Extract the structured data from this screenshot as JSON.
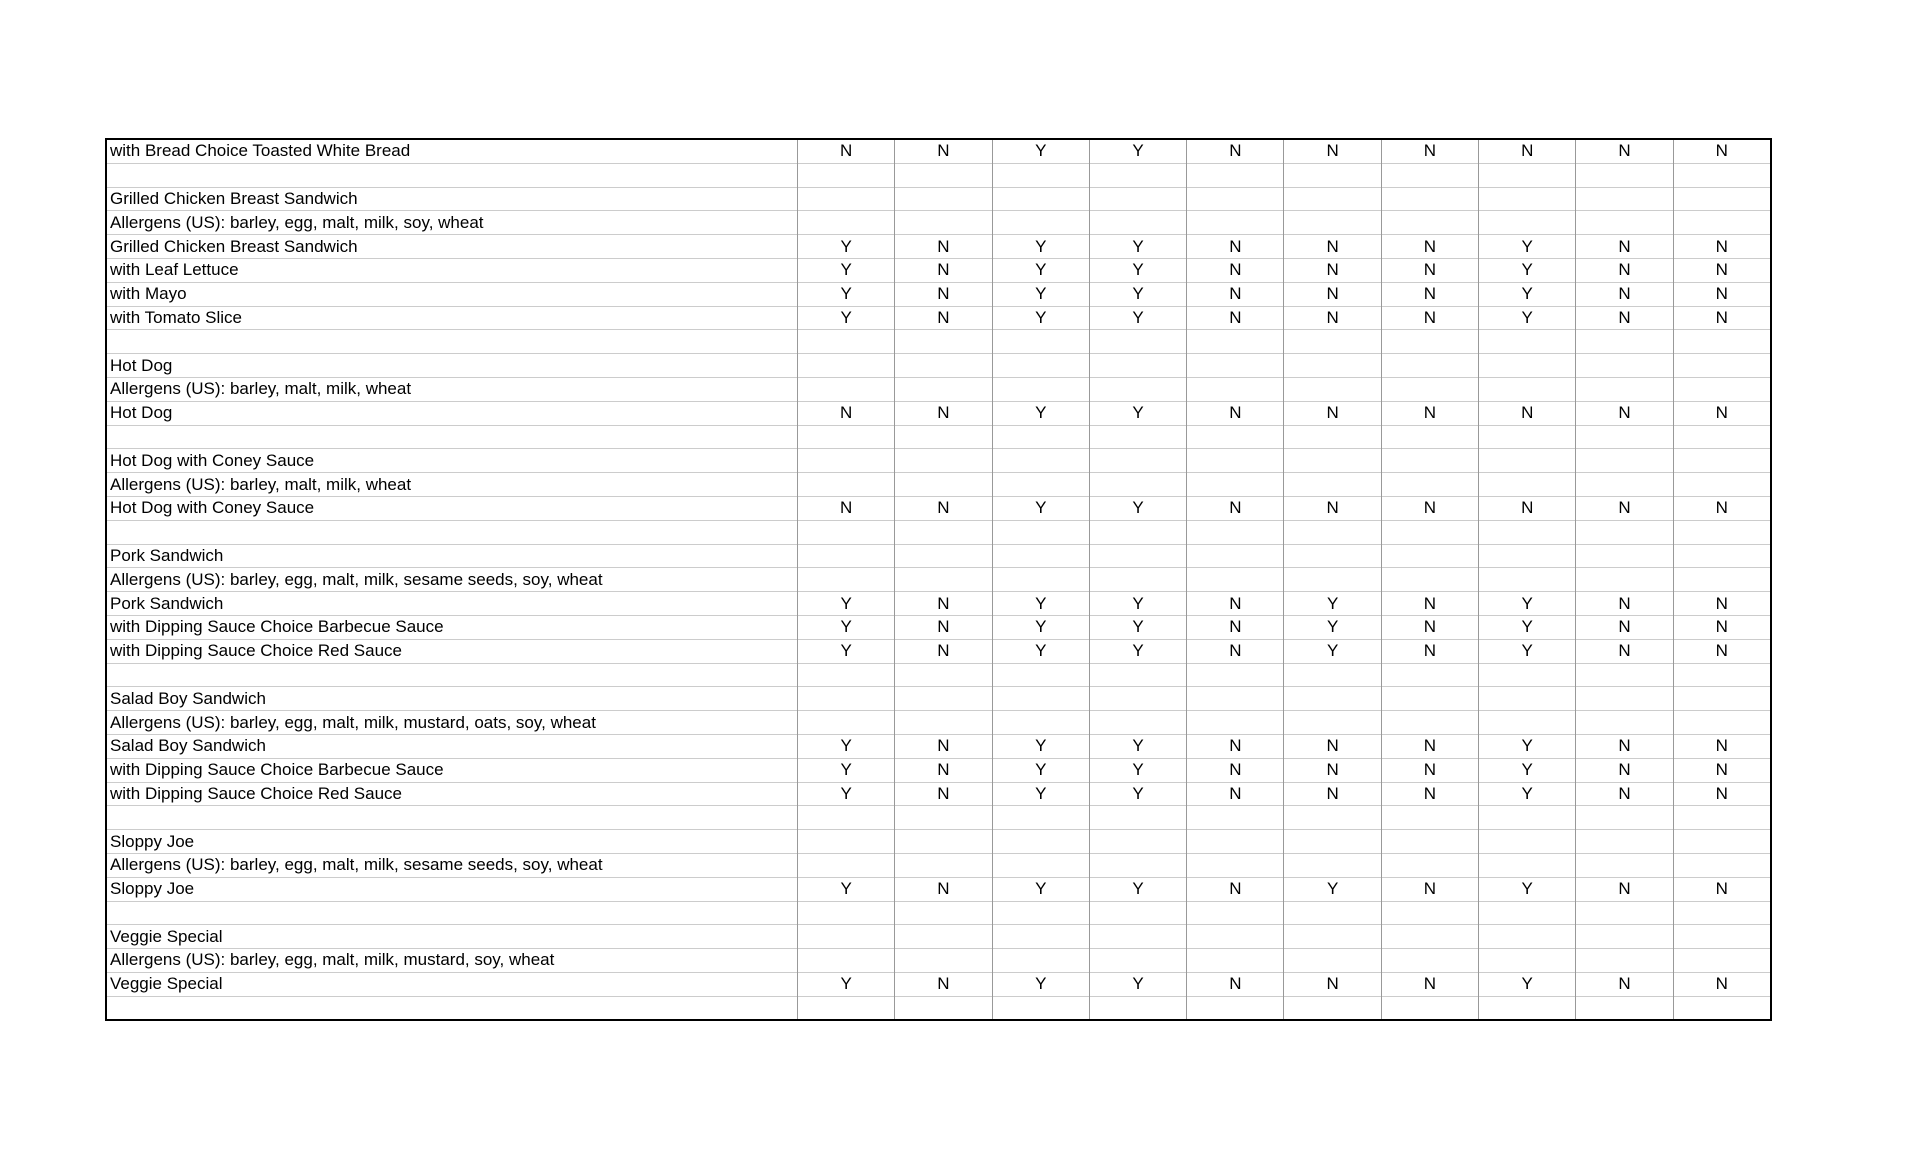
{
  "rows": [
    {
      "label": "with Bread Choice Toasted White Bread",
      "values": [
        "N",
        "N",
        "Y",
        "Y",
        "N",
        "N",
        "N",
        "N",
        "N",
        "N"
      ]
    },
    {
      "label": "",
      "values": []
    },
    {
      "label": "Grilled Chicken Breast Sandwich",
      "values": []
    },
    {
      "label": "Allergens (US): barley, egg, malt, milk, soy, wheat",
      "values": []
    },
    {
      "label": "Grilled Chicken Breast Sandwich",
      "values": [
        "Y",
        "N",
        "Y",
        "Y",
        "N",
        "N",
        "N",
        "Y",
        "N",
        "N"
      ]
    },
    {
      "label": "with Leaf Lettuce",
      "values": [
        "Y",
        "N",
        "Y",
        "Y",
        "N",
        "N",
        "N",
        "Y",
        "N",
        "N"
      ]
    },
    {
      "label": "with Mayo",
      "values": [
        "Y",
        "N",
        "Y",
        "Y",
        "N",
        "N",
        "N",
        "Y",
        "N",
        "N"
      ]
    },
    {
      "label": "with Tomato Slice",
      "values": [
        "Y",
        "N",
        "Y",
        "Y",
        "N",
        "N",
        "N",
        "Y",
        "N",
        "N"
      ]
    },
    {
      "label": "",
      "values": []
    },
    {
      "label": "Hot Dog",
      "values": []
    },
    {
      "label": "Allergens (US): barley, malt, milk, wheat",
      "values": []
    },
    {
      "label": "Hot Dog",
      "values": [
        "N",
        "N",
        "Y",
        "Y",
        "N",
        "N",
        "N",
        "N",
        "N",
        "N"
      ]
    },
    {
      "label": "",
      "values": []
    },
    {
      "label": "Hot Dog with Coney Sauce",
      "values": []
    },
    {
      "label": "Allergens (US): barley, malt, milk, wheat",
      "values": []
    },
    {
      "label": "Hot Dog with Coney Sauce",
      "values": [
        "N",
        "N",
        "Y",
        "Y",
        "N",
        "N",
        "N",
        "N",
        "N",
        "N"
      ]
    },
    {
      "label": "",
      "values": []
    },
    {
      "label": "Pork Sandwich",
      "values": []
    },
    {
      "label": "Allergens (US): barley, egg, malt, milk, sesame seeds, soy, wheat",
      "values": []
    },
    {
      "label": "Pork Sandwich",
      "values": [
        "Y",
        "N",
        "Y",
        "Y",
        "N",
        "Y",
        "N",
        "Y",
        "N",
        "N"
      ]
    },
    {
      "label": "with Dipping Sauce Choice Barbecue Sauce",
      "values": [
        "Y",
        "N",
        "Y",
        "Y",
        "N",
        "Y",
        "N",
        "Y",
        "N",
        "N"
      ]
    },
    {
      "label": "with Dipping Sauce Choice Red Sauce",
      "values": [
        "Y",
        "N",
        "Y",
        "Y",
        "N",
        "Y",
        "N",
        "Y",
        "N",
        "N"
      ]
    },
    {
      "label": "",
      "values": []
    },
    {
      "label": "Salad Boy Sandwich",
      "values": []
    },
    {
      "label": "Allergens (US): barley, egg, malt, milk, mustard, oats, soy, wheat",
      "values": []
    },
    {
      "label": "Salad Boy Sandwich",
      "values": [
        "Y",
        "N",
        "Y",
        "Y",
        "N",
        "N",
        "N",
        "Y",
        "N",
        "N"
      ]
    },
    {
      "label": "with Dipping Sauce Choice Barbecue Sauce",
      "values": [
        "Y",
        "N",
        "Y",
        "Y",
        "N",
        "N",
        "N",
        "Y",
        "N",
        "N"
      ]
    },
    {
      "label": "with Dipping Sauce Choice Red Sauce",
      "values": [
        "Y",
        "N",
        "Y",
        "Y",
        "N",
        "N",
        "N",
        "Y",
        "N",
        "N"
      ]
    },
    {
      "label": "",
      "values": []
    },
    {
      "label": "Sloppy Joe",
      "values": []
    },
    {
      "label": "Allergens (US): barley, egg, malt, milk, sesame seeds, soy, wheat",
      "values": []
    },
    {
      "label": "Sloppy Joe",
      "values": [
        "Y",
        "N",
        "Y",
        "Y",
        "N",
        "Y",
        "N",
        "Y",
        "N",
        "N"
      ]
    },
    {
      "label": "",
      "values": []
    },
    {
      "label": "Veggie Special",
      "values": []
    },
    {
      "label": "Allergens (US): barley, egg, malt, milk, mustard, soy, wheat",
      "values": []
    },
    {
      "label": "Veggie Special",
      "values": [
        "Y",
        "N",
        "Y",
        "Y",
        "N",
        "N",
        "N",
        "Y",
        "N",
        "N"
      ]
    },
    {
      "label": "",
      "values": []
    }
  ]
}
